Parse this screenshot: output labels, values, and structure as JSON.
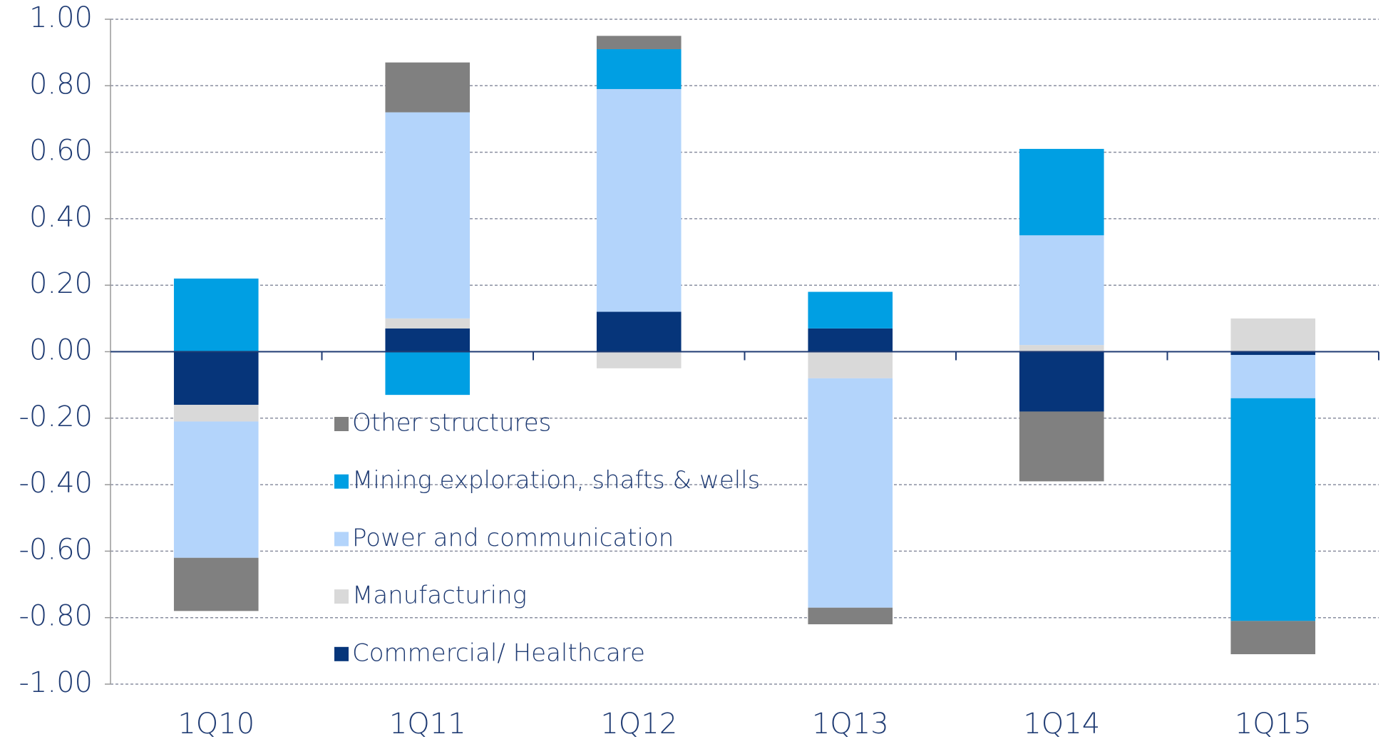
{
  "chart_data": {
    "type": "stacked_bar",
    "categories": [
      "1Q10",
      "1Q11",
      "1Q12",
      "1Q13",
      "1Q14",
      "1Q15"
    ],
    "series": [
      {
        "name": "Commercial/ Healthcare",
        "color": "#06357a",
        "values": [
          -0.16,
          0.07,
          0.12,
          0.07,
          -0.18,
          -0.01
        ]
      },
      {
        "name": "Manufacturing",
        "color": "#d9d9d9",
        "values": [
          -0.05,
          0.03,
          -0.05,
          -0.08,
          0.02,
          0.1
        ]
      },
      {
        "name": "Power and communication",
        "color": "#b3d4fb",
        "values": [
          -0.41,
          0.62,
          0.67,
          -0.69,
          0.33,
          -0.13
        ]
      },
      {
        "name": "Mining exploration, shafts & wells",
        "color": "#009fe3",
        "values": [
          0.22,
          -0.13,
          0.12,
          0.11,
          0.26,
          -0.67
        ]
      },
      {
        "name": "Other structures",
        "color": "#808080",
        "values": [
          -0.16,
          0.15,
          0.04,
          -0.05,
          -0.21,
          -0.1
        ]
      }
    ],
    "ylim": [
      -1,
      1
    ],
    "yticks": [
      {
        "value": -1,
        "label": "-1.00"
      },
      {
        "value": -0.8,
        "label": "-0.80"
      },
      {
        "value": -0.6,
        "label": "-0.60"
      },
      {
        "value": -0.4,
        "label": "-0.40"
      },
      {
        "value": -0.2,
        "label": "-0.20"
      },
      {
        "value": 0,
        "label": "0.00"
      },
      {
        "value": 0.2,
        "label": "0.20"
      },
      {
        "value": 0.4,
        "label": "0.40"
      },
      {
        "value": 0.6,
        "label": "0.60"
      },
      {
        "value": 0.8,
        "label": "0.80"
      },
      {
        "value": 1,
        "label": "1.00"
      }
    ],
    "grid": true,
    "legend": "inside-center-left"
  }
}
